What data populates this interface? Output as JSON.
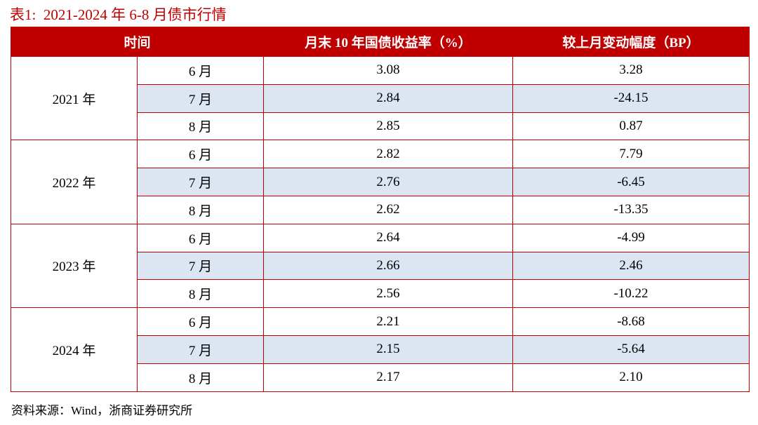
{
  "title": "表1:  2021-2024 年 6-8 月债市行情",
  "headers": [
    "时间",
    "月末 10 年国债收益率（%）",
    "较上月变动幅度（BP）"
  ],
  "groups": [
    {
      "year": "2021 年",
      "rows": [
        {
          "month": "6 月",
          "yield": "3.08",
          "change": "3.28"
        },
        {
          "month": "7 月",
          "yield": "2.84",
          "change": "-24.15"
        },
        {
          "month": "8 月",
          "yield": "2.85",
          "change": "0.87"
        }
      ]
    },
    {
      "year": "2022 年",
      "rows": [
        {
          "month": "6 月",
          "yield": "2.82",
          "change": "7.79"
        },
        {
          "month": "7 月",
          "yield": "2.76",
          "change": "-6.45"
        },
        {
          "month": "8 月",
          "yield": "2.62",
          "change": "-13.35"
        }
      ]
    },
    {
      "year": "2023 年",
      "rows": [
        {
          "month": "6 月",
          "yield": "2.64",
          "change": "-4.99"
        },
        {
          "month": "7 月",
          "yield": "2.66",
          "change": "2.46"
        },
        {
          "month": "8 月",
          "yield": "2.56",
          "change": "-10.22"
        }
      ]
    },
    {
      "year": "2024 年",
      "rows": [
        {
          "month": "6 月",
          "yield": "2.21",
          "change": "-8.68"
        },
        {
          "month": "7 月",
          "yield": "2.15",
          "change": "-5.64"
        },
        {
          "month": "8 月",
          "yield": "2.17",
          "change": "2.10"
        }
      ]
    }
  ],
  "source": "资料来源：Wind，浙商证券研究所",
  "colors": {
    "accent": "#c00000",
    "stripe": "#dce6f2"
  }
}
